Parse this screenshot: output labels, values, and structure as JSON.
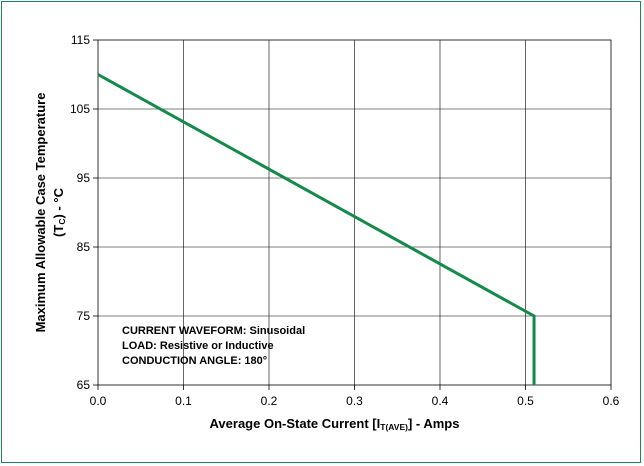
{
  "chart_data": {
    "type": "line",
    "title": "",
    "xlabel": {
      "parts": [
        {
          "text": "Average On-State Current [I",
          "style": "normal"
        },
        {
          "text": "T(AVE)",
          "style": "sub"
        },
        {
          "text": "] - Amps",
          "style": "normal"
        }
      ]
    },
    "ylabel": {
      "line1": "Maximum Allowable Case Temperature",
      "line2_parts": [
        {
          "text": "(T",
          "style": "normal"
        },
        {
          "text": "C",
          "style": "sub"
        },
        {
          "text": ") - °C",
          "style": "normal"
        }
      ]
    },
    "xlim": [
      0.0,
      0.6
    ],
    "ylim": [
      65,
      115
    ],
    "x_ticks": [
      "0.0",
      "0.1",
      "0.2",
      "0.3",
      "0.4",
      "0.5",
      "0.6"
    ],
    "x_tick_values": [
      0.0,
      0.1,
      0.2,
      0.3,
      0.4,
      0.5,
      0.6
    ],
    "y_ticks": [
      "65",
      "75",
      "85",
      "95",
      "105",
      "115"
    ],
    "y_tick_values": [
      65,
      75,
      85,
      95,
      105,
      115
    ],
    "grid": true,
    "series": [
      {
        "color": "#128a4a",
        "points": [
          [
            0.0,
            110
          ],
          [
            0.51,
            75
          ],
          [
            0.51,
            65
          ]
        ]
      }
    ],
    "annotations": [
      "CURRENT WAVEFORM: Sinusoidal",
      "LOAD: Resistive or Inductive",
      "CONDUCTION ANGLE: 180°"
    ]
  },
  "colors": {
    "frame": "#1a8a5a",
    "grid": "#000000",
    "series": "#128a4a"
  }
}
